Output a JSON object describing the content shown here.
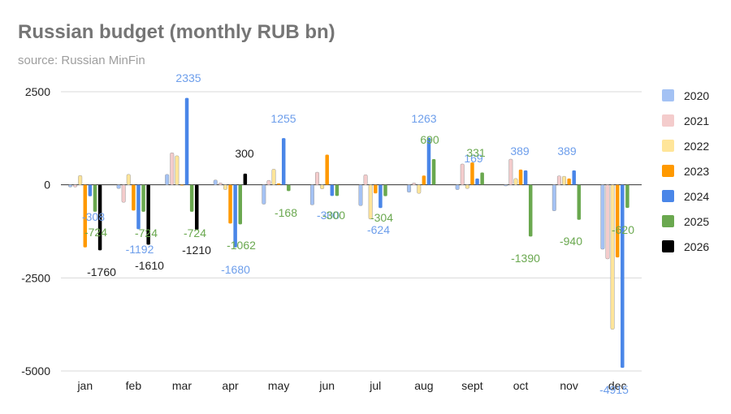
{
  "header": {
    "title": "Russian budget (monthly RUB bn)",
    "subtitle": "source: Russian MinFin"
  },
  "chart_data": {
    "type": "bar",
    "title": "Russian budget (monthly RUB bn)",
    "subtitle": "source: Russian MinFin",
    "xlabel": "",
    "ylabel": "",
    "ylim": [
      -5000,
      2500
    ],
    "yticks": [
      2500,
      0,
      -2500,
      -5000
    ],
    "grid": true,
    "legend_position": "right",
    "categories": [
      "jan",
      "feb",
      "mar",
      "apr",
      "may",
      "jun",
      "jul",
      "aug",
      "sept",
      "oct",
      "nov",
      "dec"
    ],
    "series": [
      {
        "name": "2020",
        "color": "#a4c2f4",
        "values": [
          -60,
          -100,
          280,
          130,
          -520,
          -540,
          -560,
          -200,
          -130,
          -30,
          -700,
          -1730
        ]
      },
      {
        "name": "2021",
        "color": "#f4cccc",
        "values": [
          -60,
          -470,
          860,
          50,
          120,
          340,
          270,
          50,
          560,
          690,
          240,
          -1990
        ]
      },
      {
        "name": "2022",
        "color": "#ffe599",
        "values": [
          250,
          280,
          780,
          -130,
          420,
          -110,
          -920,
          -230,
          -100,
          170,
          230,
          -3880
        ]
      },
      {
        "name": "2023",
        "color": "#ff9900",
        "values": [
          -1680,
          -690,
          0,
          -1040,
          40,
          810,
          -230,
          250,
          600,
          410,
          170,
          -1950
        ]
      },
      {
        "name": "2024",
        "color": "#4a86e8",
        "values": [
          -308,
          -1192,
          2335,
          -1680,
          1255,
          -300,
          -624,
          1263,
          169,
          389,
          389,
          -4915
        ]
      },
      {
        "name": "2025",
        "color": "#6aa84f",
        "values": [
          -724,
          -724,
          -724,
          -1062,
          -168,
          -300,
          -304,
          690,
          331,
          -1390,
          -940,
          -620
        ]
      },
      {
        "name": "2026",
        "color": "#000000",
        "values": [
          -1760,
          -1610,
          -1210,
          300,
          null,
          null,
          null,
          null,
          null,
          null,
          null,
          null
        ]
      }
    ],
    "data_labels": [
      {
        "series": "2024",
        "category": "jan",
        "text": "-308"
      },
      {
        "series": "2025",
        "category": "jan",
        "text": "-724"
      },
      {
        "series": "2026",
        "category": "jan",
        "text": "-1760"
      },
      {
        "series": "2025",
        "category": "feb",
        "text": "-724"
      },
      {
        "series": "2024",
        "category": "feb",
        "text": "-1192"
      },
      {
        "series": "2026",
        "category": "feb",
        "text": "-1610"
      },
      {
        "series": "2024",
        "category": "mar",
        "text": "2335"
      },
      {
        "series": "2025",
        "category": "mar",
        "text": "-724"
      },
      {
        "series": "2026",
        "category": "mar",
        "text": "-1210"
      },
      {
        "series": "2026",
        "category": "apr",
        "text": "300"
      },
      {
        "series": "2025",
        "category": "apr",
        "text": "-1062"
      },
      {
        "series": "2024",
        "category": "apr",
        "text": "-1680"
      },
      {
        "series": "2024",
        "category": "may",
        "text": "1255"
      },
      {
        "series": "2025",
        "category": "may",
        "text": "-168"
      },
      {
        "series": "2024",
        "category": "jun",
        "text": "-300"
      },
      {
        "series": "2025",
        "category": "jun",
        "text": "-300"
      },
      {
        "series": "2025",
        "category": "jul",
        "text": "-304"
      },
      {
        "series": "2024",
        "category": "jul",
        "text": "-624"
      },
      {
        "series": "2024",
        "category": "aug",
        "text": "1263"
      },
      {
        "series": "2025",
        "category": "aug",
        "text": "690"
      },
      {
        "series": "2024",
        "category": "sept",
        "text": "169"
      },
      {
        "series": "2025",
        "category": "sept",
        "text": "331"
      },
      {
        "series": "2024",
        "category": "oct",
        "text": "389"
      },
      {
        "series": "2025",
        "category": "oct",
        "text": "-1390"
      },
      {
        "series": "2024",
        "category": "nov",
        "text": "389"
      },
      {
        "series": "2025",
        "category": "nov",
        "text": "-940"
      },
      {
        "series": "2025",
        "category": "dec",
        "text": "-620"
      },
      {
        "series": "2024",
        "category": "dec",
        "text": "-4915"
      }
    ]
  },
  "legend": {
    "items": [
      {
        "label": "2020",
        "color": "#a4c2f4"
      },
      {
        "label": "2021",
        "color": "#f4cccc"
      },
      {
        "label": "2022",
        "color": "#ffe599"
      },
      {
        "label": "2023",
        "color": "#ff9900"
      },
      {
        "label": "2024",
        "color": "#4a86e8"
      },
      {
        "label": "2025",
        "color": "#6aa84f"
      },
      {
        "label": "2026",
        "color": "#000000"
      }
    ]
  },
  "colors": {
    "label_2024": "#6d9eeb",
    "label_2025": "#6aa84f",
    "label_2026": "#222222",
    "grid": "#d9d9d9",
    "zero_line": "#333333",
    "axis_text": "#222222"
  }
}
